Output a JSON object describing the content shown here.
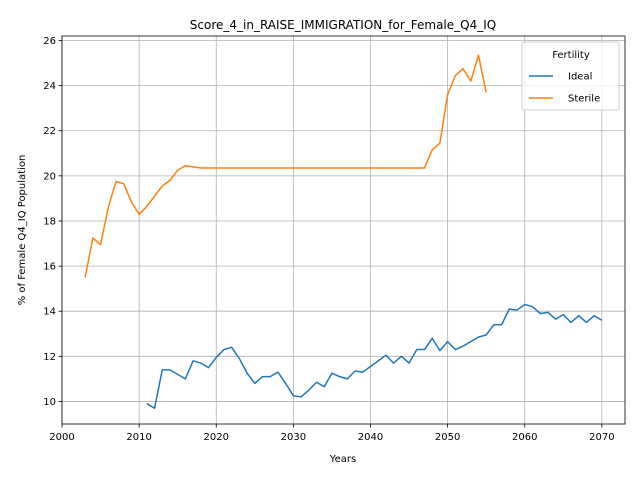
{
  "chart_data": {
    "type": "line",
    "title": "Score_4_in_RAISE_IMMIGRATION_for_Female_Q4_IQ",
    "xlabel": "Years",
    "ylabel": "% of Female Q4_IQ Population",
    "xlim": [
      2000,
      2073
    ],
    "ylim": [
      9.0,
      26.2
    ],
    "xticks": [
      2000,
      2010,
      2020,
      2030,
      2040,
      2050,
      2060,
      2070
    ],
    "yticks": [
      10,
      12,
      14,
      16,
      18,
      20,
      22,
      24,
      26
    ],
    "grid": true,
    "legend": {
      "title": "Fertility",
      "placement": "top-right"
    },
    "series": [
      {
        "name": "Ideal",
        "color": "#1f77b4",
        "x": [
          2011,
          2012,
          2013,
          2014,
          2015,
          2016,
          2017,
          2018,
          2019,
          2020,
          2021,
          2022,
          2023,
          2024,
          2025,
          2026,
          2027,
          2028,
          2029,
          2030,
          2031,
          2032,
          2033,
          2034,
          2035,
          2036,
          2037,
          2038,
          2039,
          2040,
          2041,
          2042,
          2043,
          2044,
          2045,
          2046,
          2047,
          2048,
          2049,
          2050,
          2051,
          2052,
          2053,
          2054,
          2055,
          2056,
          2057,
          2058,
          2059,
          2060,
          2061,
          2062,
          2063,
          2064,
          2065,
          2066,
          2067,
          2068,
          2069,
          2070
        ],
        "y": [
          9.9,
          9.7,
          11.4,
          11.4,
          11.2,
          11.0,
          11.8,
          11.7,
          11.5,
          11.95,
          12.3,
          12.4,
          11.9,
          11.25,
          10.8,
          11.1,
          11.1,
          11.3,
          10.8,
          10.25,
          10.2,
          10.5,
          10.85,
          10.65,
          11.25,
          11.1,
          11.0,
          11.35,
          11.3,
          11.55,
          11.8,
          12.05,
          11.7,
          12.0,
          11.7,
          12.3,
          12.3,
          12.8,
          12.25,
          12.65,
          12.3,
          12.45,
          12.65,
          12.85,
          12.95,
          13.4,
          13.4,
          14.1,
          14.05,
          14.3,
          14.2,
          13.9,
          13.95,
          13.65,
          13.85,
          13.5,
          13.8,
          13.5,
          13.8,
          13.6
        ]
      },
      {
        "name": "Sterile",
        "color": "#ff7f0e",
        "x": [
          2003,
          2004,
          2005,
          2006,
          2007,
          2008,
          2009,
          2010,
          2011,
          2012,
          2013,
          2014,
          2015,
          2016,
          2017,
          2018,
          2019,
          2020,
          2021,
          2022,
          2023,
          2024,
          2025,
          2026,
          2027,
          2028,
          2029,
          2030,
          2031,
          2032,
          2033,
          2034,
          2035,
          2036,
          2037,
          2038,
          2039,
          2040,
          2041,
          2042,
          2043,
          2044,
          2045,
          2046,
          2047,
          2048,
          2049,
          2050,
          2051,
          2052,
          2053,
          2054,
          2055
        ],
        "y": [
          15.5,
          17.25,
          16.95,
          18.6,
          19.75,
          19.65,
          18.85,
          18.3,
          18.65,
          19.1,
          19.55,
          19.8,
          20.25,
          20.45,
          20.4,
          20.35,
          20.35,
          20.35,
          20.35,
          20.35,
          20.35,
          20.35,
          20.35,
          20.35,
          20.35,
          20.35,
          20.35,
          20.35,
          20.35,
          20.35,
          20.35,
          20.35,
          20.35,
          20.35,
          20.35,
          20.35,
          20.35,
          20.35,
          20.35,
          20.35,
          20.35,
          20.35,
          20.35,
          20.35,
          20.35,
          21.15,
          21.45,
          23.6,
          24.45,
          24.75,
          24.2,
          25.35,
          23.7
        ]
      }
    ]
  }
}
